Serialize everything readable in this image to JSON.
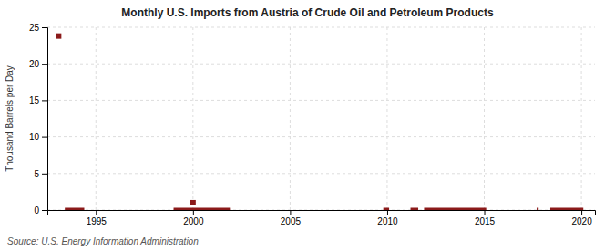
{
  "chart_data": {
    "type": "scatter",
    "title": "Monthly U.S. Imports from Austria of Crude Oil and Petroleum Products",
    "ylabel": "Thousand Barrels per Day",
    "annotations": [
      "Source: U.S. Energy Information Administration"
    ],
    "xlim": [
      1992.5,
      2020.7
    ],
    "ylim": [
      0,
      25
    ],
    "xticks": [
      1995,
      2000,
      2005,
      2010,
      2015,
      2020
    ],
    "yticks": [
      0,
      5,
      10,
      15,
      20,
      25
    ],
    "grid": true,
    "series": [
      {
        "type": "scatter",
        "marker": "square",
        "color": "#8B1A1A",
        "x": [
          1993.08,
          2000.0
        ],
        "values": [
          23.8,
          1.0
        ]
      },
      {
        "type": "line",
        "line_style": "solid",
        "color": "#8B1A1A",
        "x": [
          1993.4,
          1994.4,
          null,
          1999.0,
          2001.9,
          null,
          2009.8,
          2010.1,
          null,
          2011.2,
          2011.6,
          null,
          2011.9,
          2015.1,
          null,
          2017.7,
          2017.8,
          null,
          2018.4,
          2020.1
        ],
        "values": [
          0,
          0,
          null,
          0,
          0,
          null,
          0,
          0,
          null,
          0,
          0,
          null,
          0,
          0,
          null,
          0,
          0,
          null,
          0,
          0
        ]
      }
    ]
  }
}
